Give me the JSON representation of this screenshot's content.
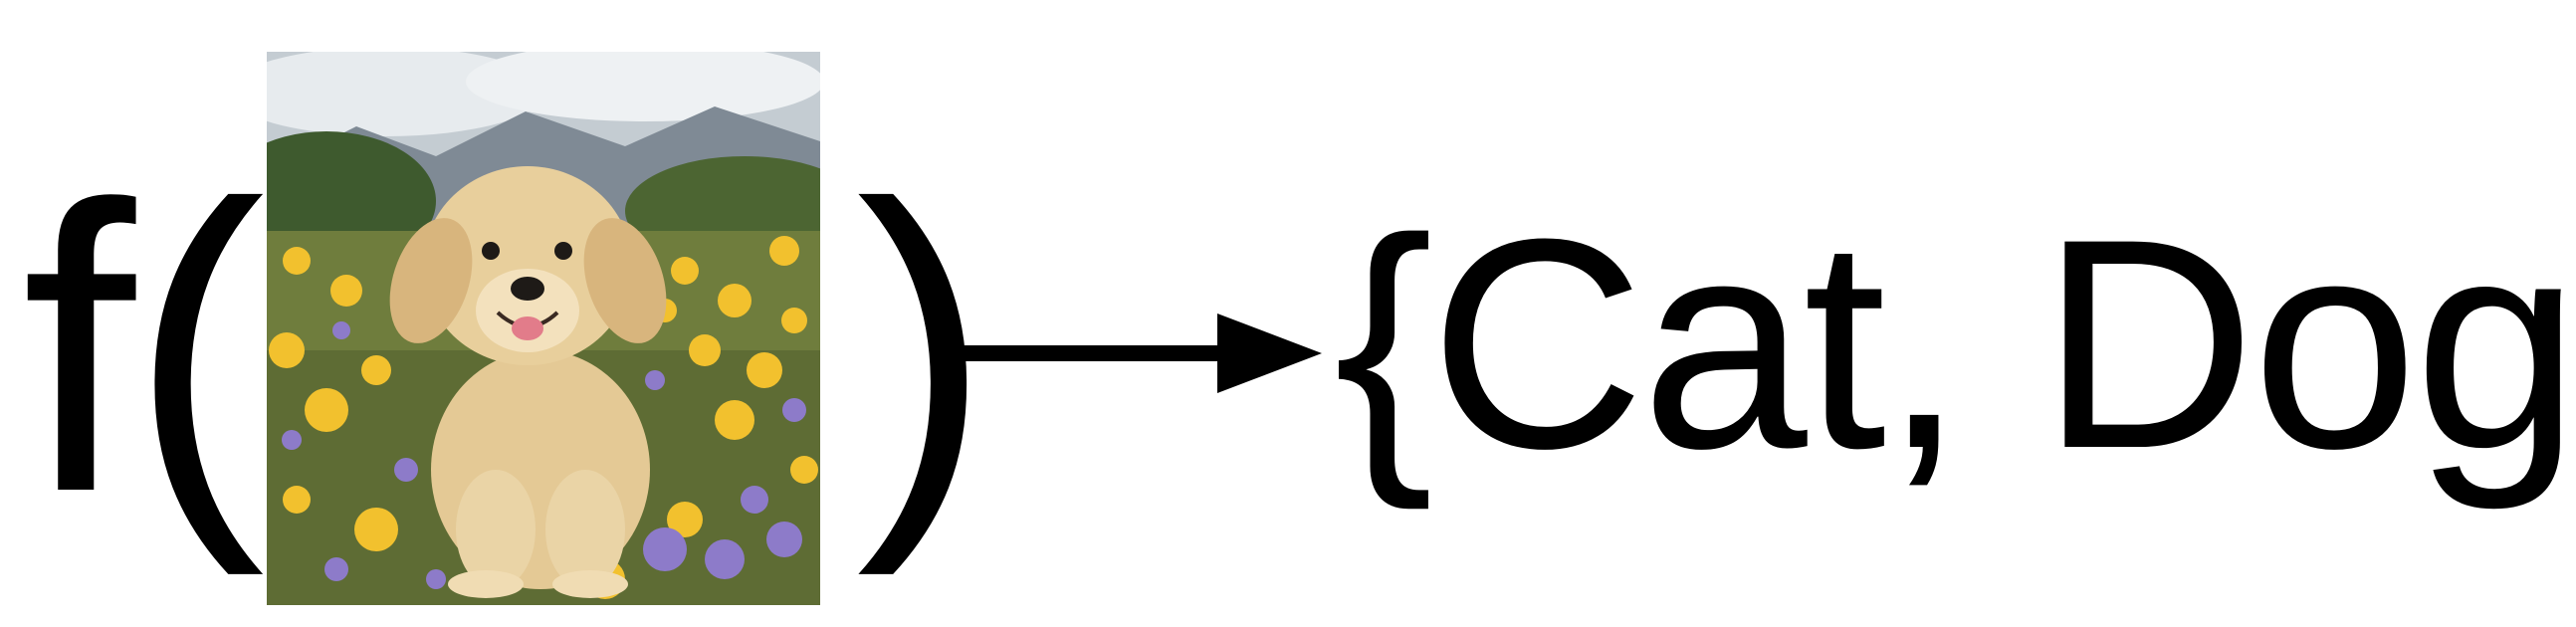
{
  "equation": {
    "function_name": "f",
    "open_paren": "(",
    "close_paren": ")",
    "input_image": {
      "icon": "golden-retriever-puppy-in-flower-field",
      "colors": {
        "sky": "#b7c0c8",
        "mountain": "#7c8791",
        "grass": "#6b7a3c",
        "flower_yellow": "#f2c12e",
        "flower_purple": "#8d7bc9",
        "fur": "#e6cc9a",
        "fur_shadow": "#c9a978"
      }
    },
    "arrow_icon": "right-arrow-icon",
    "output_set": "{Cat, Dog}"
  }
}
